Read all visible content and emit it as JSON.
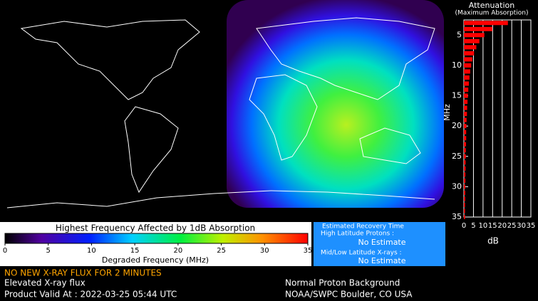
{
  "chart_data": {
    "type": "hbar",
    "title": "Attenuation",
    "subtitle": "(Maximum Absorption)",
    "y_label": "MHz",
    "x_label": "dB",
    "color": "#ff0000",
    "categories": [
      3,
      4,
      5,
      6,
      7,
      8,
      9,
      10,
      11,
      12,
      13,
      14,
      15,
      16,
      17,
      18,
      19,
      20,
      21,
      22,
      23,
      24,
      25,
      26,
      27,
      28,
      29,
      30,
      31,
      32,
      33,
      34,
      35
    ],
    "values": [
      23,
      14.9,
      10.7,
      8.1,
      6.5,
      5.3,
      4.4,
      3.8,
      3.3,
      2.9,
      2.6,
      2.3,
      2.1,
      1.9,
      1.7,
      1.6,
      1.4,
      1.3,
      1.2,
      1.2,
      1.1,
      1.0,
      1.0,
      0.9,
      0.9,
      0.8,
      0.8,
      0.7,
      0.7,
      0.7,
      0.6,
      0.6,
      0.6
    ],
    "ylim": [
      35,
      2.5
    ],
    "yticks": [
      5,
      10,
      15,
      20,
      25,
      30,
      35
    ],
    "xlim": [
      0,
      35
    ],
    "xticks": [
      0,
      5,
      10,
      15,
      20,
      25,
      30,
      35
    ],
    "grid": true
  },
  "colorbar": {
    "title": "Highest Frequency Affected by 1dB Absorption",
    "label": "Degraded Frequency (MHz)",
    "lim": [
      0,
      35
    ],
    "ticks": [
      0,
      5,
      10,
      15,
      20,
      25,
      30,
      35
    ]
  },
  "recovery": {
    "title": "Estimated Recovery Time",
    "high_label": "High Latitude Protons :",
    "high_value": "No Estimate",
    "low_label": "Mid/Low Latitude X-rays :",
    "low_value": "No Estimate"
  },
  "status": {
    "alert": "NO NEW X-RAY FLUX FOR 2 MINUTES",
    "xray": "Elevated X-ray flux",
    "valid": "Product Valid At : 2022-03-25 05:44 UTC",
    "proton": "Normal Proton Background",
    "source": "NOAA/SWPC Boulder, CO USA"
  }
}
